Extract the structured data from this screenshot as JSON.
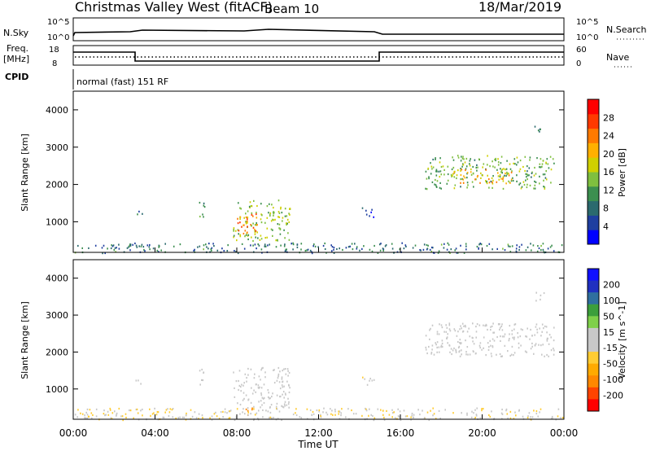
{
  "header": {
    "station": "Christmas Valley West (fitACF)",
    "beam": "Beam 10",
    "date": "18/Mar/2019"
  },
  "panels": {
    "nsky": {
      "left_label": "N.Sky",
      "right_label": "N.Search",
      "tick_top": "10^5",
      "tick_bottom": "10^0",
      "rtick_top": "10^5",
      "rtick_bottom": "10^0"
    },
    "freq": {
      "left_label_1": "Freq.",
      "left_label_2": "[MHz]",
      "right_label": "Nave",
      "tick_top": "18",
      "tick_bottom": "8",
      "rtick_top": "60",
      "rtick_bottom": "0"
    },
    "cpid": {
      "left_label": "CPID",
      "text": "normal (fast) 151 RF"
    }
  },
  "colors": {
    "power_scale": [
      "#0000ff",
      "#1f3fa0",
      "#2b6a6e",
      "#3c8f4f",
      "#7fbf3f",
      "#d0d000",
      "#ffb000",
      "#ff7a00",
      "#ff3a00",
      "#ff0000"
    ],
    "velocity_scale": [
      "#ff0000",
      "#ff4400",
      "#ff8800",
      "#ffaa00",
      "#ffcc33",
      "#c8c8c8",
      "#c8c8c8",
      "#7fd04a",
      "#3c9f3c",
      "#2f6f9f",
      "#2030c0",
      "#1010ff"
    ]
  },
  "chart_data": [
    {
      "type": "heatmap",
      "name": "power",
      "ylabel": "Slant Range [km]",
      "yticks": [
        "1000",
        "2000",
        "3000",
        "4000"
      ],
      "ylim": [
        180,
        4500
      ],
      "xlim": [
        0,
        24
      ],
      "colorbar_label": "Power [dB]",
      "colorbar_ticks": [
        "4",
        "8",
        "12",
        "16",
        "20",
        "24",
        "28"
      ],
      "clusters": [
        {
          "t0": 6.1,
          "t1": 6.4,
          "r0": 1050,
          "r1": 1600,
          "value": 10
        },
        {
          "t0": 3.0,
          "t1": 3.4,
          "r0": 1150,
          "r1": 1350,
          "value": 6
        },
        {
          "t0": 7.8,
          "t1": 10.6,
          "r0": 500,
          "r1": 1600,
          "value": 14
        },
        {
          "t0": 8.0,
          "t1": 9.0,
          "r0": 650,
          "r1": 1250,
          "value": 24
        },
        {
          "t0": 14.1,
          "t1": 14.7,
          "r0": 1100,
          "r1": 1400,
          "value": 5
        },
        {
          "t0": 17.2,
          "t1": 23.5,
          "r0": 1900,
          "r1": 2800,
          "value": 12
        },
        {
          "t0": 18.5,
          "t1": 21.5,
          "r0": 2050,
          "r1": 2450,
          "value": 20
        },
        {
          "t0": 22.5,
          "t1": 23.0,
          "r0": 3400,
          "r1": 3650,
          "value": 8
        },
        {
          "t0": 0.0,
          "t1": 24.0,
          "r0": 180,
          "r1": 450,
          "value": 4
        }
      ]
    },
    {
      "type": "heatmap",
      "name": "velocity",
      "ylabel": "Slant Range [km]",
      "yticks": [
        "1000",
        "2000",
        "3000",
        "4000"
      ],
      "ylim": [
        180,
        4500
      ],
      "xlim": [
        0,
        24
      ],
      "xlabel": "Time UT",
      "xticks": [
        "00:00",
        "04:00",
        "08:00",
        "12:00",
        "16:00",
        "20:00",
        "00:00"
      ],
      "colorbar_label": "Velocity [m s^-1]",
      "colorbar_ticks": [
        "200",
        "100",
        "50",
        "15",
        "-15",
        "-50",
        "-100",
        "-200"
      ],
      "clusters": [
        {
          "t0": 6.1,
          "t1": 6.4,
          "r0": 1050,
          "r1": 1600,
          "value": 0
        },
        {
          "t0": 3.0,
          "t1": 3.4,
          "r0": 1150,
          "r1": 1350,
          "value": 0
        },
        {
          "t0": 7.8,
          "t1": 10.6,
          "r0": 500,
          "r1": 1600,
          "value": 0
        },
        {
          "t0": 8.2,
          "t1": 8.8,
          "r0": 300,
          "r1": 500,
          "value": -150
        },
        {
          "t0": 14.1,
          "t1": 14.7,
          "r0": 1100,
          "r1": 1400,
          "value": -40
        },
        {
          "t0": 17.2,
          "t1": 23.5,
          "r0": 1900,
          "r1": 2800,
          "value": 0
        },
        {
          "t0": 22.5,
          "t1": 23.0,
          "r0": 3400,
          "r1": 3650,
          "value": 0
        },
        {
          "t0": 0.0,
          "t1": 24.0,
          "r0": 180,
          "r1": 500,
          "value": -40
        }
      ]
    }
  ]
}
